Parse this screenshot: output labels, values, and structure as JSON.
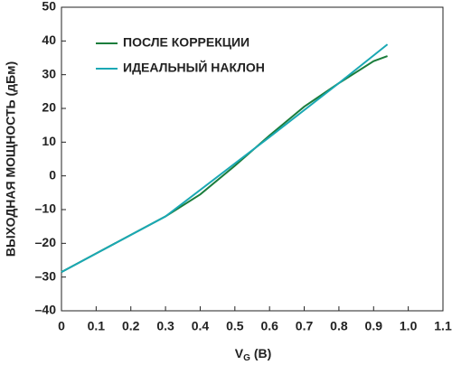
{
  "chart_data": {
    "type": "line",
    "x_label": {
      "main": "V",
      "sub": "G",
      "unit": "(B)"
    },
    "y_label": "ВЫХОДНАЯ МОЩНОСТЬ (дБм)",
    "series": [
      {
        "name": "ПОСЛЕ КОРРЕКЦИИ",
        "color": "#1b7d3c",
        "x": [
          0,
          0.1,
          0.2,
          0.3,
          0.4,
          0.5,
          0.6,
          0.7,
          0.8,
          0.9,
          0.94
        ],
        "values": [
          -28.5,
          -23,
          -17.5,
          -12,
          -5.5,
          3,
          12,
          20.5,
          27.5,
          34,
          35.5
        ]
      },
      {
        "name": "ИДЕАЛЬНЫЙ НАКЛОН",
        "color": "#1aa8b4",
        "x": [
          0,
          0.3,
          0.6,
          0.8,
          0.94
        ],
        "values": [
          -28.5,
          -12,
          11.5,
          27.5,
          39
        ]
      }
    ],
    "xlim": [
      0,
      1.1
    ],
    "xticks": [
      0,
      0.1,
      0.2,
      0.3,
      0.4,
      0.5,
      0.6,
      0.7,
      0.8,
      0.9,
      {
        "value": 1,
        "label": "1.0"
      },
      1.1
    ],
    "ylim": [
      -40,
      50
    ],
    "yticks": [
      {
        "value": -40,
        "label": "–40"
      },
      {
        "value": -30,
        "label": "–30"
      },
      {
        "value": -20,
        "label": "–20"
      },
      {
        "value": -10,
        "label": "–10"
      },
      0,
      10,
      20,
      30,
      40,
      50
    ],
    "legend": "upper-left",
    "grid": false
  }
}
